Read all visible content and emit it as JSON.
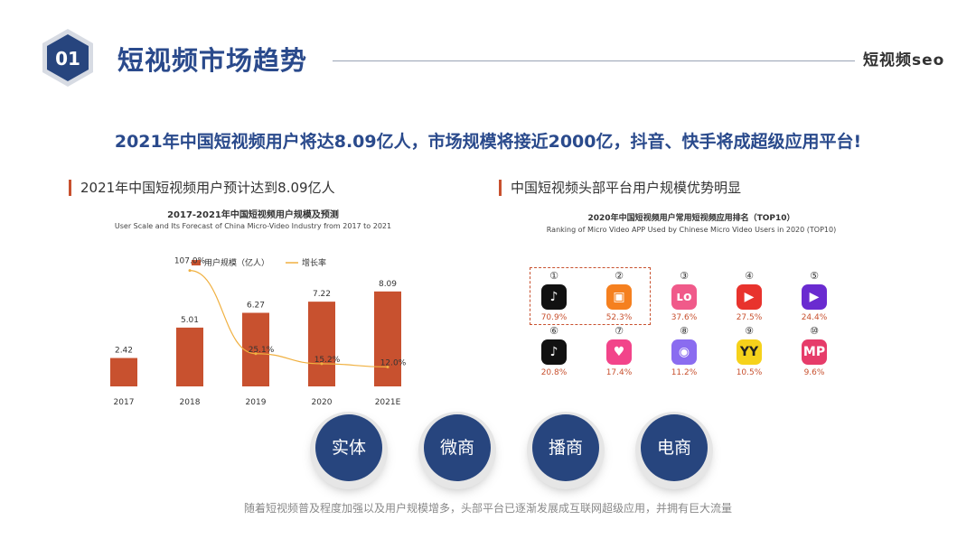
{
  "header": {
    "badge_number": "01",
    "title": "短视频市场趋势",
    "brand": "短视频seo"
  },
  "headline": "2021年中国短视频用户将达8.09亿人，市场规模将接近2000亿，抖音、快手将成超级应用平台!",
  "left_section": {
    "title": "2021年中国短视频用户预计达到8.09亿人",
    "caption_cn": "2017-2021年中国短视频用户规模及预测",
    "caption_en": "User Scale and Its Forecast of China Micro-Video Industry from 2017 to 2021"
  },
  "chart_data": {
    "type": "bar",
    "title": "2017-2021年中国短视频用户规模及预测",
    "subtitle": "User Scale and Its Forecast of China Micro-Video Industry from 2017 to 2021",
    "categories": [
      "2017",
      "2018",
      "2019",
      "2020",
      "2021E"
    ],
    "series": [
      {
        "name": "用户规模（亿人）",
        "type": "bar",
        "color": "#c8512f",
        "values": [
          2.42,
          5.01,
          6.27,
          7.22,
          8.09
        ],
        "labels": [
          "2.42",
          "5.01",
          "6.27",
          "7.22",
          "8.09"
        ]
      },
      {
        "name": "增长率",
        "type": "line",
        "color": "#f0b040",
        "values": [
          null,
          107.0,
          25.1,
          15.2,
          12.0
        ],
        "labels": [
          "",
          "107.0%",
          "25.1%",
          "15.2%",
          "12.0%"
        ]
      }
    ],
    "ylim": [
      0,
      10
    ],
    "y2lim": [
      0,
      120
    ],
    "legend_position": "top-left",
    "grid": false
  },
  "right_section": {
    "title": "中国短视频头部平台用户规模优势明显",
    "caption_cn": "2020年中国短视频用户常用短视频应用排名（TOP10）",
    "caption_en": "Ranking of Micro Video APP Used by Chinese Micro Video Users in 2020 (TOP10)"
  },
  "apps": [
    {
      "rank": "①",
      "icon_name": "douyin-icon",
      "glyph": "♪",
      "color": "#111111",
      "pct": "70.9%"
    },
    {
      "rank": "②",
      "icon_name": "kuaishou-icon",
      "glyph": "▣",
      "color": "#f5801f",
      "pct": "52.3%"
    },
    {
      "rank": "③",
      "icon_name": "lolo-icon",
      "glyph": "ʟᴏ",
      "color": "#f05a8a",
      "pct": "37.6%"
    },
    {
      "rank": "④",
      "icon_name": "play-icon",
      "glyph": "▶",
      "color": "#e8332d",
      "pct": "27.5%"
    },
    {
      "rank": "⑤",
      "icon_name": "video-play-icon",
      "glyph": "▶",
      "color": "#6a2bd0",
      "pct": "24.4%"
    },
    {
      "rank": "⑥",
      "icon_name": "douyin-lite-icon",
      "glyph": "♪",
      "color": "#111111",
      "pct": "20.8%"
    },
    {
      "rank": "⑦",
      "icon_name": "heart-play-icon",
      "glyph": "♥",
      "color": "#f2448a",
      "pct": "17.4%"
    },
    {
      "rank": "⑧",
      "icon_name": "chat-face-icon",
      "glyph": "◉",
      "color": "#8a6cf0",
      "pct": "11.2%"
    },
    {
      "rank": "⑨",
      "icon_name": "yy-icon",
      "glyph": "YY",
      "color": "#f6d21b",
      "pct": "10.5%"
    },
    {
      "rank": "⑩",
      "icon_name": "mp-icon",
      "glyph": "MP",
      "color": "#e63c6a",
      "pct": "9.6%"
    }
  ],
  "circles": [
    "实体",
    "微商",
    "播商",
    "电商"
  ],
  "footer": "随着短视频普及程度加强以及用户规模增多，头部平台已逐渐发展成互联网超级应用，并拥有巨大流量"
}
